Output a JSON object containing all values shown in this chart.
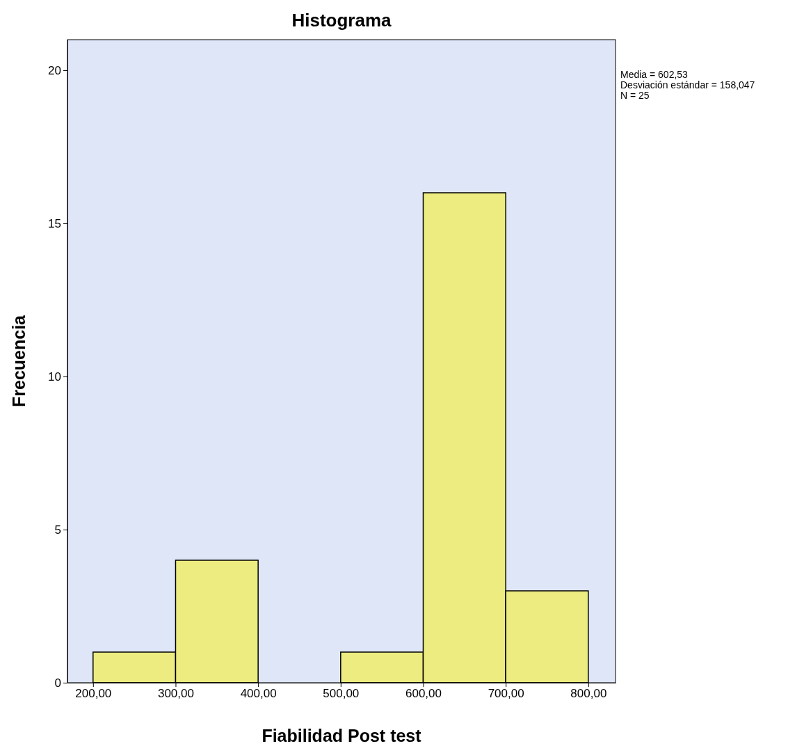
{
  "chart_data": {
    "type": "histogram",
    "title": "Histograma",
    "xlabel": "Fiabilidad Post test",
    "ylabel": "Frecuencia",
    "bins": [
      200,
      300,
      400,
      500,
      600,
      700,
      800
    ],
    "values": [
      1,
      4,
      0,
      1,
      16,
      3
    ],
    "color": "#ecec80",
    "xlim": [
      169,
      833
    ],
    "ylim": [
      0,
      21
    ],
    "xticks": [
      {
        "value": 200,
        "label": "200,00"
      },
      {
        "value": 300,
        "label": "300,00"
      },
      {
        "value": 400,
        "label": "400,00"
      },
      {
        "value": 500,
        "label": "500,00"
      },
      {
        "value": 600,
        "label": "600,00"
      },
      {
        "value": 700,
        "label": "700,00"
      },
      {
        "value": 800,
        "label": "800,00"
      }
    ],
    "yticks": [
      0,
      5,
      10,
      15,
      20
    ],
    "grid": false,
    "annotations": [
      "Media = 602,53",
      "Desviación estándar = 158,047",
      "N = 25"
    ]
  }
}
